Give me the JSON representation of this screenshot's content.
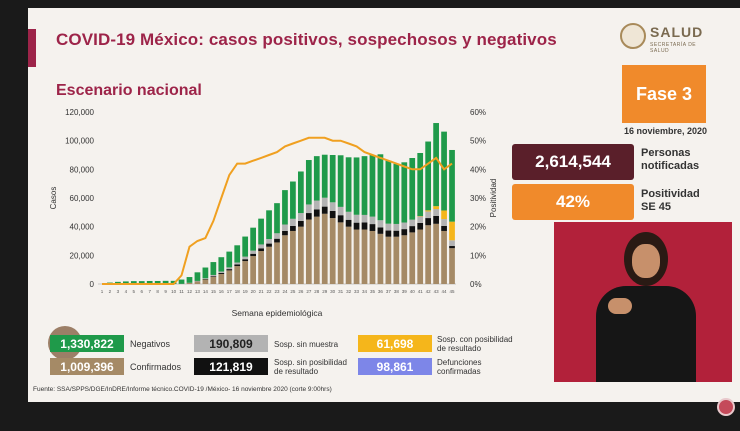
{
  "header": {
    "title": "COVID-19 México: casos positivos, sospechosos y negativos",
    "subtitle": "Escenario nacional",
    "logo_text": "SALUD",
    "logo_sub": "SECRETARÍA DE SALUD",
    "phase": "Fase 3",
    "date": "16 noviembre, 2020"
  },
  "stats": {
    "notified_value": "2,614,544",
    "notified_label_1": "Personas",
    "notified_label_2": "notificadas",
    "positivity_value": "42%",
    "positivity_label_1": "Positividad",
    "positivity_label_2": "SE 45"
  },
  "legend": {
    "negativos_value": "1,330,822",
    "negativos_label": "Negativos",
    "sin_muestra_value": "190,809",
    "sin_muestra_label": "Sosp. sin muestra",
    "con_posibilidad_value": "61,698",
    "con_posibilidad_label_1": "Sosp. con posibilidad",
    "con_posibilidad_label_2": "de resultado",
    "confirmados_value": "1,009,396",
    "confirmados_label": "Confirmados",
    "sin_posibilidad_value": "121,819",
    "sin_posibilidad_label_1": "Sosp. sin posibilidad",
    "sin_posibilidad_label_2": "de resultado",
    "defunciones_value": "98,861",
    "defunciones_label_1": "Defunciones",
    "defunciones_label_2": "confirmadas"
  },
  "colors": {
    "negativos": "#1f9a4a",
    "sin_muestra": "#b3b3b3",
    "con_posibilidad": "#f5b61b",
    "confirmados": "#a58a66",
    "sin_posibilidad": "#111111",
    "defunciones": "#7d86e8",
    "positividad_line": "#f0a020",
    "title": "#9d2449"
  },
  "source": "Fuente: SSA/SPPS/DGE/InDRE/Informe técnico.COVID-19 /México- 16 noviembre 2020 (corte 9:00hrs)",
  "chart_data": {
    "type": "bar",
    "xlabel": "Semana epidemiológica",
    "ylabel": "Casos",
    "y2label": "Positividad",
    "ylim": [
      0,
      120000
    ],
    "y2lim": [
      0,
      60
    ],
    "yticks": [
      "0",
      "20,000",
      "40,000",
      "60,000",
      "80,000",
      "100,000",
      "120,000"
    ],
    "y2ticks": [
      "0%",
      "10%",
      "20%",
      "30%",
      "40%",
      "50%",
      "60%"
    ],
    "categories": [
      "1",
      "2",
      "3",
      "4",
      "5",
      "6",
      "7",
      "8",
      "9",
      "10",
      "11",
      "12",
      "13",
      "14",
      "15",
      "16",
      "17",
      "18",
      "19",
      "20",
      "21",
      "22",
      "23",
      "24",
      "25",
      "26",
      "27",
      "28",
      "29",
      "30",
      "31",
      "32",
      "33",
      "34",
      "35",
      "36",
      "37",
      "38",
      "39",
      "40",
      "41",
      "42",
      "43",
      "44",
      "45"
    ],
    "series": [
      {
        "name": "Confirmados",
        "values": [
          0,
          0,
          0,
          0,
          0,
          0,
          0,
          0,
          0,
          0,
          100,
          700,
          1700,
          3200,
          5000,
          7000,
          9500,
          12500,
          16000,
          19500,
          23000,
          26000,
          29000,
          34000,
          37000,
          40000,
          45000,
          47000,
          49000,
          46000,
          43000,
          40000,
          38000,
          38000,
          37000,
          35000,
          33000,
          33000,
          34000,
          36000,
          38000,
          41000,
          42000,
          37000,
          25000
        ]
      },
      {
        "name": "Sosp. sin posibilidad de resultado",
        "values": [
          0,
          0,
          0,
          0,
          0,
          0,
          0,
          0,
          0,
          0,
          0,
          50,
          150,
          300,
          500,
          700,
          900,
          1100,
          1300,
          1600,
          1900,
          2200,
          2600,
          3000,
          3500,
          4000,
          4500,
          5000,
          5000,
          5000,
          5000,
          4800,
          4800,
          4900,
          4800,
          4500,
          4300,
          4200,
          4300,
          4400,
          4600,
          5000,
          5500,
          3500,
          1500
        ]
      },
      {
        "name": "Sosp. sin muestra",
        "values": [
          0,
          0,
          0,
          0,
          0,
          0,
          0,
          0,
          0,
          0,
          0,
          100,
          300,
          500,
          800,
          1000,
          1200,
          1400,
          1800,
          2200,
          2700,
          3200,
          3800,
          4500,
          5000,
          5500,
          6000,
          6200,
          6200,
          6000,
          5800,
          5600,
          5500,
          5300,
          5200,
          5000,
          4800,
          4700,
          4600,
          4500,
          4500,
          4600,
          4800,
          4800,
          4000
        ]
      },
      {
        "name": "Sosp. con posibilidad de resultado",
        "values": [
          0,
          0,
          0,
          0,
          0,
          0,
          0,
          0,
          0,
          0,
          0,
          0,
          0,
          0,
          0,
          0,
          0,
          0,
          0,
          0,
          0,
          0,
          0,
          0,
          0,
          0,
          0,
          0,
          0,
          0,
          0,
          0,
          0,
          0,
          0,
          0,
          0,
          0,
          0,
          0,
          300,
          800,
          2000,
          6000,
          13000
        ]
      },
      {
        "name": "Negativos",
        "values": [
          0,
          1000,
          1500,
          1800,
          2000,
          2000,
          2100,
          2100,
          2200,
          2200,
          3000,
          4000,
          6000,
          7500,
          9000,
          10000,
          11000,
          12000,
          14000,
          16000,
          18000,
          20000,
          21000,
          24000,
          26000,
          29000,
          31000,
          31000,
          30000,
          33000,
          36000,
          38000,
          40000,
          41000,
          43000,
          46000,
          44000,
          42000,
          42000,
          43000,
          44000,
          48000,
          58000,
          55000,
          50000
        ]
      }
    ],
    "positividad": [
      0,
      0,
      0,
      0,
      0,
      0,
      0,
      0,
      0,
      0,
      3,
      13,
      15,
      16,
      22,
      30,
      38,
      42,
      42,
      43,
      44,
      45,
      46,
      48,
      49,
      50,
      51,
      51,
      51,
      50,
      50,
      49,
      48,
      46,
      45,
      44,
      43,
      42,
      41,
      40,
      40,
      42,
      44,
      40,
      42
    ]
  }
}
